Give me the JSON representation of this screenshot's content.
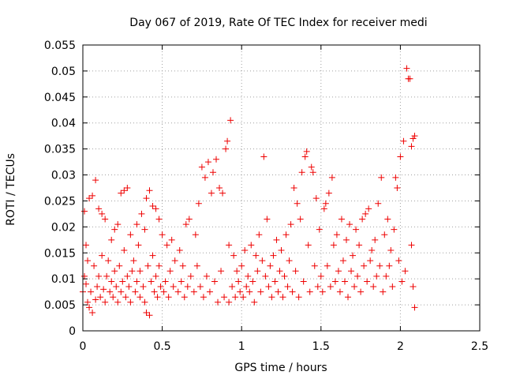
{
  "chart_data": {
    "type": "scatter",
    "title": "Day 067 of 2019, Rate Of TEC Index for receiver medi",
    "xlabel": "GPS time / hours",
    "ylabel": "ROTI / TECUs",
    "xlim": [
      0,
      2.5
    ],
    "ylim": [
      0,
      0.055
    ],
    "x_ticks": [
      0,
      0.5,
      1,
      1.5,
      2,
      2.5
    ],
    "x_tick_labels": [
      "0",
      "0.5",
      "1",
      "1.5",
      "2",
      "2.5"
    ],
    "y_ticks": [
      0,
      0.005,
      0.01,
      0.015,
      0.02,
      0.025,
      0.03,
      0.035,
      0.04,
      0.045,
      0.05,
      0.055
    ],
    "y_tick_labels": [
      "0",
      "0.005",
      "0.01",
      "0.015",
      "0.02",
      "0.025",
      "0.03",
      "0.035",
      "0.04",
      "0.045",
      "0.05",
      "0.055"
    ],
    "grid": true,
    "marker": "+",
    "color": "#ee0000",
    "series": [
      {
        "name": "ROTI",
        "points": [
          [
            0.0,
            0.0075
          ],
          [
            0.01,
            0.023
          ],
          [
            0.01,
            0.0105
          ],
          [
            0.02,
            0.0165
          ],
          [
            0.02,
            0.009
          ],
          [
            0.03,
            0.0055
          ],
          [
            0.03,
            0.0135
          ],
          [
            0.04,
            0.0255
          ],
          [
            0.04,
            0.0045
          ],
          [
            0.05,
            0.0075
          ],
          [
            0.06,
            0.026
          ],
          [
            0.06,
            0.0035
          ],
          [
            0.07,
            0.0125
          ],
          [
            0.08,
            0.029
          ],
          [
            0.08,
            0.006
          ],
          [
            0.09,
            0.0085
          ],
          [
            0.1,
            0.0235
          ],
          [
            0.1,
            0.0105
          ],
          [
            0.11,
            0.0065
          ],
          [
            0.12,
            0.0225
          ],
          [
            0.12,
            0.0145
          ],
          [
            0.13,
            0.008
          ],
          [
            0.14,
            0.0215
          ],
          [
            0.14,
            0.0055
          ],
          [
            0.15,
            0.0105
          ],
          [
            0.16,
            0.0135
          ],
          [
            0.17,
            0.0075
          ],
          [
            0.18,
            0.0175
          ],
          [
            0.18,
            0.0095
          ],
          [
            0.19,
            0.0065
          ],
          [
            0.2,
            0.0195
          ],
          [
            0.2,
            0.0115
          ],
          [
            0.21,
            0.0085
          ],
          [
            0.22,
            0.0205
          ],
          [
            0.22,
            0.0055
          ],
          [
            0.23,
            0.0125
          ],
          [
            0.24,
            0.0265
          ],
          [
            0.24,
            0.0075
          ],
          [
            0.25,
            0.0095
          ],
          [
            0.26,
            0.027
          ],
          [
            0.26,
            0.0155
          ],
          [
            0.27,
            0.0065
          ],
          [
            0.28,
            0.0275
          ],
          [
            0.28,
            0.0105
          ],
          [
            0.29,
            0.0085
          ],
          [
            0.3,
            0.0185
          ],
          [
            0.3,
            0.0055
          ],
          [
            0.31,
            0.0115
          ],
          [
            0.32,
            0.0135
          ],
          [
            0.33,
            0.0075
          ],
          [
            0.34,
            0.0205
          ],
          [
            0.34,
            0.0095
          ],
          [
            0.35,
            0.0165
          ],
          [
            0.36,
            0.0065
          ],
          [
            0.36,
            0.0115
          ],
          [
            0.37,
            0.0225
          ],
          [
            0.38,
            0.0085
          ],
          [
            0.39,
            0.0195
          ],
          [
            0.39,
            0.0055
          ],
          [
            0.4,
            0.0255
          ],
          [
            0.4,
            0.0035
          ],
          [
            0.41,
            0.0125
          ],
          [
            0.42,
            0.027
          ],
          [
            0.42,
            0.003
          ],
          [
            0.43,
            0.0095
          ],
          [
            0.44,
            0.024
          ],
          [
            0.44,
            0.0145
          ],
          [
            0.45,
            0.0075
          ],
          [
            0.46,
            0.0235
          ],
          [
            0.46,
            0.0105
          ],
          [
            0.47,
            0.0065
          ],
          [
            0.48,
            0.0215
          ],
          [
            0.48,
            0.0125
          ],
          [
            0.49,
            0.0085
          ],
          [
            0.5,
            0.0185
          ],
          [
            0.51,
            0.0075
          ],
          [
            0.52,
            0.0095
          ],
          [
            0.53,
            0.0165
          ],
          [
            0.54,
            0.0065
          ],
          [
            0.55,
            0.0115
          ],
          [
            0.56,
            0.0175
          ],
          [
            0.57,
            0.0085
          ],
          [
            0.58,
            0.0135
          ],
          [
            0.6,
            0.0075
          ],
          [
            0.61,
            0.0155
          ],
          [
            0.62,
            0.0095
          ],
          [
            0.63,
            0.0125
          ],
          [
            0.64,
            0.0065
          ],
          [
            0.65,
            0.0205
          ],
          [
            0.66,
            0.0085
          ],
          [
            0.67,
            0.0215
          ],
          [
            0.68,
            0.0105
          ],
          [
            0.7,
            0.0075
          ],
          [
            0.71,
            0.0185
          ],
          [
            0.72,
            0.0125
          ],
          [
            0.73,
            0.0245
          ],
          [
            0.74,
            0.0085
          ],
          [
            0.75,
            0.0315
          ],
          [
            0.76,
            0.0065
          ],
          [
            0.77,
            0.0295
          ],
          [
            0.78,
            0.0105
          ],
          [
            0.79,
            0.0325
          ],
          [
            0.8,
            0.0075
          ],
          [
            0.81,
            0.0265
          ],
          [
            0.82,
            0.0305
          ],
          [
            0.83,
            0.0095
          ],
          [
            0.84,
            0.033
          ],
          [
            0.85,
            0.0055
          ],
          [
            0.86,
            0.0275
          ],
          [
            0.87,
            0.0115
          ],
          [
            0.88,
            0.0265
          ],
          [
            0.89,
            0.0065
          ],
          [
            0.9,
            0.035
          ],
          [
            0.91,
            0.0365
          ],
          [
            0.92,
            0.0165
          ],
          [
            0.92,
            0.0055
          ],
          [
            0.93,
            0.0405
          ],
          [
            0.94,
            0.0085
          ],
          [
            0.95,
            0.0145
          ],
          [
            0.96,
            0.0065
          ],
          [
            0.97,
            0.0115
          ],
          [
            0.98,
            0.0095
          ],
          [
            0.99,
            0.0075
          ],
          [
            1.0,
            0.0125
          ],
          [
            1.01,
            0.0065
          ],
          [
            1.02,
            0.0155
          ],
          [
            1.03,
            0.0085
          ],
          [
            1.04,
            0.0105
          ],
          [
            1.05,
            0.0075
          ],
          [
            1.06,
            0.0165
          ],
          [
            1.07,
            0.0095
          ],
          [
            1.08,
            0.0055
          ],
          [
            1.09,
            0.0145
          ],
          [
            1.1,
            0.0115
          ],
          [
            1.11,
            0.0185
          ],
          [
            1.12,
            0.0075
          ],
          [
            1.13,
            0.0135
          ],
          [
            1.14,
            0.0335
          ],
          [
            1.15,
            0.0105
          ],
          [
            1.16,
            0.0215
          ],
          [
            1.17,
            0.0085
          ],
          [
            1.18,
            0.0125
          ],
          [
            1.19,
            0.0065
          ],
          [
            1.2,
            0.0145
          ],
          [
            1.21,
            0.0095
          ],
          [
            1.22,
            0.0175
          ],
          [
            1.23,
            0.0075
          ],
          [
            1.24,
            0.0115
          ],
          [
            1.25,
            0.0155
          ],
          [
            1.26,
            0.0065
          ],
          [
            1.27,
            0.0105
          ],
          [
            1.28,
            0.0185
          ],
          [
            1.29,
            0.0085
          ],
          [
            1.3,
            0.0135
          ],
          [
            1.31,
            0.0205
          ],
          [
            1.32,
            0.0075
          ],
          [
            1.33,
            0.0275
          ],
          [
            1.34,
            0.0115
          ],
          [
            1.35,
            0.0245
          ],
          [
            1.36,
            0.0065
          ],
          [
            1.37,
            0.0215
          ],
          [
            1.38,
            0.0305
          ],
          [
            1.39,
            0.0095
          ],
          [
            1.4,
            0.0335
          ],
          [
            1.41,
            0.0345
          ],
          [
            1.42,
            0.0165
          ],
          [
            1.43,
            0.0075
          ],
          [
            1.44,
            0.0315
          ],
          [
            1.45,
            0.0305
          ],
          [
            1.46,
            0.0125
          ],
          [
            1.47,
            0.0255
          ],
          [
            1.48,
            0.0085
          ],
          [
            1.49,
            0.0195
          ],
          [
            1.5,
            0.0105
          ],
          [
            1.51,
            0.0075
          ],
          [
            1.52,
            0.0235
          ],
          [
            1.53,
            0.0245
          ],
          [
            1.54,
            0.0125
          ],
          [
            1.55,
            0.0265
          ],
          [
            1.56,
            0.0085
          ],
          [
            1.57,
            0.0295
          ],
          [
            1.58,
            0.0165
          ],
          [
            1.59,
            0.0095
          ],
          [
            1.6,
            0.0185
          ],
          [
            1.61,
            0.0115
          ],
          [
            1.62,
            0.0075
          ],
          [
            1.63,
            0.0215
          ],
          [
            1.64,
            0.0135
          ],
          [
            1.65,
            0.0095
          ],
          [
            1.66,
            0.0175
          ],
          [
            1.67,
            0.0065
          ],
          [
            1.68,
            0.0205
          ],
          [
            1.69,
            0.0115
          ],
          [
            1.7,
            0.0145
          ],
          [
            1.71,
            0.0085
          ],
          [
            1.72,
            0.0195
          ],
          [
            1.73,
            0.0105
          ],
          [
            1.74,
            0.0165
          ],
          [
            1.75,
            0.0075
          ],
          [
            1.76,
            0.0215
          ],
          [
            1.77,
            0.0125
          ],
          [
            1.78,
            0.0225
          ],
          [
            1.79,
            0.0095
          ],
          [
            1.8,
            0.0235
          ],
          [
            1.81,
            0.0135
          ],
          [
            1.82,
            0.0155
          ],
          [
            1.83,
            0.0085
          ],
          [
            1.84,
            0.0175
          ],
          [
            1.85,
            0.0105
          ],
          [
            1.86,
            0.0245
          ],
          [
            1.87,
            0.0125
          ],
          [
            1.88,
            0.0295
          ],
          [
            1.89,
            0.0075
          ],
          [
            1.9,
            0.0185
          ],
          [
            1.91,
            0.0105
          ],
          [
            1.92,
            0.0215
          ],
          [
            1.93,
            0.0125
          ],
          [
            1.94,
            0.0155
          ],
          [
            1.95,
            0.0085
          ],
          [
            1.96,
            0.0195
          ],
          [
            1.97,
            0.0295
          ],
          [
            1.98,
            0.0275
          ],
          [
            1.99,
            0.0135
          ],
          [
            2.0,
            0.0335
          ],
          [
            2.01,
            0.0095
          ],
          [
            2.02,
            0.0365
          ],
          [
            2.03,
            0.0115
          ],
          [
            2.04,
            0.0505
          ],
          [
            2.05,
            0.0485
          ],
          [
            2.06,
            0.0485
          ],
          [
            2.07,
            0.0165
          ],
          [
            2.07,
            0.0355
          ],
          [
            2.08,
            0.0085
          ],
          [
            2.08,
            0.037
          ],
          [
            2.09,
            0.0375
          ],
          [
            2.09,
            0.0045
          ]
        ]
      }
    ]
  }
}
